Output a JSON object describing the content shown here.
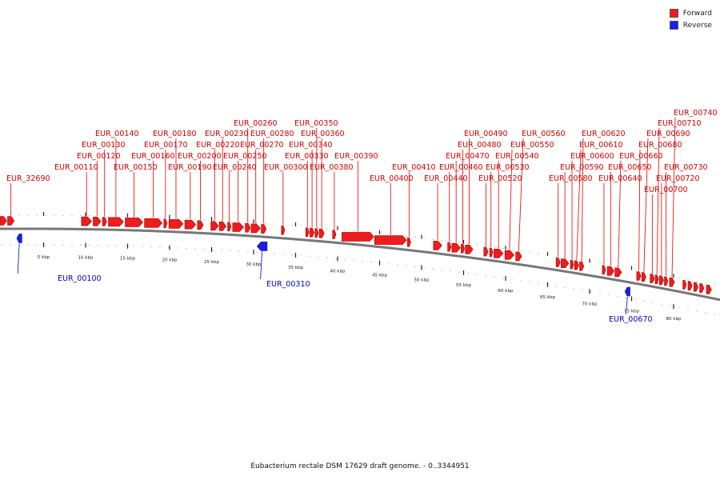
{
  "legend": {
    "forward_label": "Forward",
    "reverse_label": "Reverse",
    "forward_color": "#ee1c1c",
    "reverse_color": "#1c1cee"
  },
  "footer": {
    "caption": "Eubacterium rectale DSM 17629 draft genome. - 0..3344951"
  },
  "chart_data": {
    "type": "genome-map",
    "view_range_kbp": [
      0,
      85
    ],
    "ticks_kbp": [
      5,
      10,
      15,
      20,
      25,
      30,
      35,
      40,
      45,
      50,
      55,
      60,
      65,
      70,
      75,
      80
    ],
    "tick_labels": [
      "5 kbp",
      "10 kbp",
      "15 kbp",
      "20 kbp",
      "25 kbp",
      "30 kbp",
      "35 kbp",
      "40 kbp",
      "45 kbp",
      "50 kbp",
      "55 kbp",
      "60 kbp",
      "65 kbp",
      "70 kbp",
      "75 kbp",
      "80 kbp"
    ],
    "forward_genes": [
      {
        "start": 0.0,
        "end": 0.8,
        "label": ""
      },
      {
        "start": 0.9,
        "end": 1.7,
        "label": "EUR_32690"
      },
      {
        "start": 9.7,
        "end": 10.9,
        "label": "EUR_00110"
      },
      {
        "start": 11.1,
        "end": 12.0,
        "label": "EUR_00120"
      },
      {
        "start": 12.2,
        "end": 12.7,
        "label": "EUR_00130"
      },
      {
        "start": 12.9,
        "end": 14.7,
        "label": "EUR_00140"
      },
      {
        "start": 14.9,
        "end": 17.0,
        "label": "EUR_00150"
      },
      {
        "start": 17.2,
        "end": 19.3,
        "label": "EUR_00160"
      },
      {
        "start": 19.5,
        "end": 19.9,
        "label": "EUR_00170"
      },
      {
        "start": 20.1,
        "end": 21.8,
        "label": "EUR_00180"
      },
      {
        "start": 22.0,
        "end": 23.3,
        "label": "EUR_00190"
      },
      {
        "start": 23.5,
        "end": 24.2,
        "label": "EUR_00200"
      },
      {
        "start": 25.1,
        "end": 26.0,
        "label": "EUR_00220"
      },
      {
        "start": 26.1,
        "end": 26.9,
        "label": "EUR_00230"
      },
      {
        "start": 27.1,
        "end": 27.5,
        "label": "EUR_00240"
      },
      {
        "start": 27.7,
        "end": 29.0,
        "label": "EUR_00250"
      },
      {
        "start": 29.2,
        "end": 29.8,
        "label": "EUR_00260"
      },
      {
        "start": 29.9,
        "end": 31.0,
        "label": "EUR_00270"
      },
      {
        "start": 31.1,
        "end": 31.7,
        "label": "EUR_00280"
      },
      {
        "start": 33.5,
        "end": 33.9,
        "label": "EUR_00300"
      },
      {
        "start": 36.4,
        "end": 36.8,
        "label": "EUR_00330"
      },
      {
        "start": 36.9,
        "end": 37.4,
        "label": "EUR_00340"
      },
      {
        "start": 37.5,
        "end": 37.9,
        "label": "EUR_00350"
      },
      {
        "start": 38.0,
        "end": 38.6,
        "label": "EUR_00360"
      },
      {
        "start": 39.6,
        "end": 40.0,
        "label": "EUR_00380"
      },
      {
        "start": 40.7,
        "end": 44.5,
        "label": "EUR_00390"
      },
      {
        "start": 44.6,
        "end": 48.4,
        "label": "EUR_00400"
      },
      {
        "start": 48.5,
        "end": 48.9,
        "label": "EUR_00410"
      },
      {
        "start": 51.6,
        "end": 52.6,
        "label": "EUR_00440"
      },
      {
        "start": 53.3,
        "end": 53.7,
        "label": "EUR_00460"
      },
      {
        "start": 53.8,
        "end": 54.8,
        "label": "EUR_00470"
      },
      {
        "start": 54.9,
        "end": 55.3,
        "label": "EUR_00480"
      },
      {
        "start": 55.4,
        "end": 56.3,
        "label": "EUR_00490"
      },
      {
        "start": 57.6,
        "end": 58.1,
        "label": "EUR_00520"
      },
      {
        "start": 58.3,
        "end": 58.6,
        "label": "EUR_00530"
      },
      {
        "start": 58.8,
        "end": 59.9,
        "label": "EUR_00540"
      },
      {
        "start": 60.1,
        "end": 61.2,
        "label": "EUR_00550"
      },
      {
        "start": 61.4,
        "end": 62.1,
        "label": "EUR_00560"
      },
      {
        "start": 66.2,
        "end": 66.7,
        "label": "EUR_00580"
      },
      {
        "start": 66.8,
        "end": 67.7,
        "label": "EUR_00590"
      },
      {
        "start": 67.9,
        "end": 68.3,
        "label": "EUR_00600"
      },
      {
        "start": 68.4,
        "end": 68.9,
        "label": "EUR_00610"
      },
      {
        "start": 69.0,
        "end": 69.5,
        "label": "EUR_00620"
      },
      {
        "start": 71.7,
        "end": 72.1,
        "label": "EUR_00640"
      },
      {
        "start": 72.3,
        "end": 73.1,
        "label": "EUR_00650"
      },
      {
        "start": 73.2,
        "end": 74.0,
        "label": "EUR_00660"
      },
      {
        "start": 75.8,
        "end": 76.3,
        "label": "EUR_00680"
      },
      {
        "start": 76.4,
        "end": 76.9,
        "label": "EUR_00690"
      },
      {
        "start": 77.4,
        "end": 77.9,
        "label": "EUR_00700"
      },
      {
        "start": 78.0,
        "end": 78.4,
        "label": "EUR_00710"
      },
      {
        "start": 78.5,
        "end": 79.0,
        "label": "EUR_00720"
      },
      {
        "start": 79.1,
        "end": 79.5,
        "label": "EUR_00730"
      },
      {
        "start": 79.7,
        "end": 80.3,
        "label": "EUR_00740"
      },
      {
        "start": 81.3,
        "end": 81.7,
        "label": ""
      },
      {
        "start": 81.9,
        "end": 82.4,
        "label": ""
      },
      {
        "start": 82.6,
        "end": 83.1,
        "label": ""
      },
      {
        "start": 83.3,
        "end": 83.8,
        "label": ""
      },
      {
        "start": 84.1,
        "end": 84.7,
        "label": ""
      }
    ],
    "reverse_genes": [
      {
        "start": 2.0,
        "end": 2.6,
        "label": "EUR_00100"
      },
      {
        "start": 30.6,
        "end": 31.8,
        "label": "EUR_00310"
      },
      {
        "start": 74.4,
        "end": 75.0,
        "label": "EUR_00670"
      }
    ]
  }
}
